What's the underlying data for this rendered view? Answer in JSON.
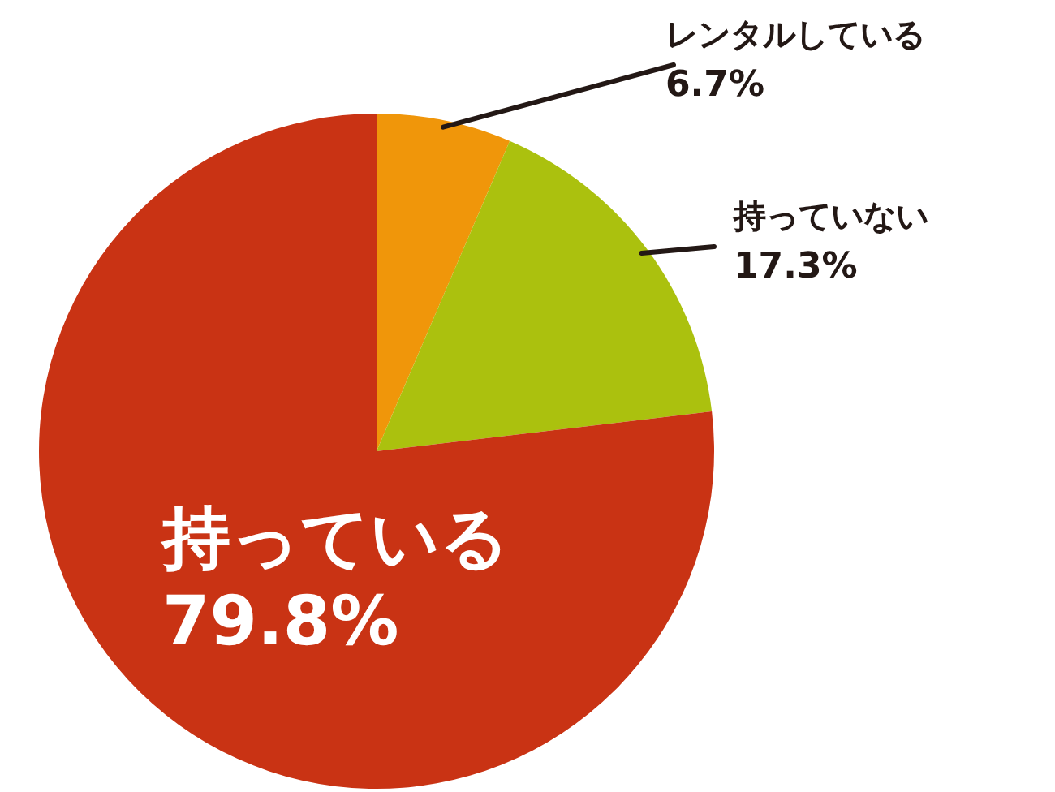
{
  "chart_data": {
    "type": "pie",
    "categories": [
      "レンタルしている",
      "持っていない",
      "持っている"
    ],
    "values": [
      6.7,
      17.3,
      79.8
    ],
    "colors": [
      "#f0960a",
      "#abc10e",
      "#c93314"
    ],
    "value_labels": [
      "6.7%",
      "17.3%",
      "79.8%"
    ]
  }
}
